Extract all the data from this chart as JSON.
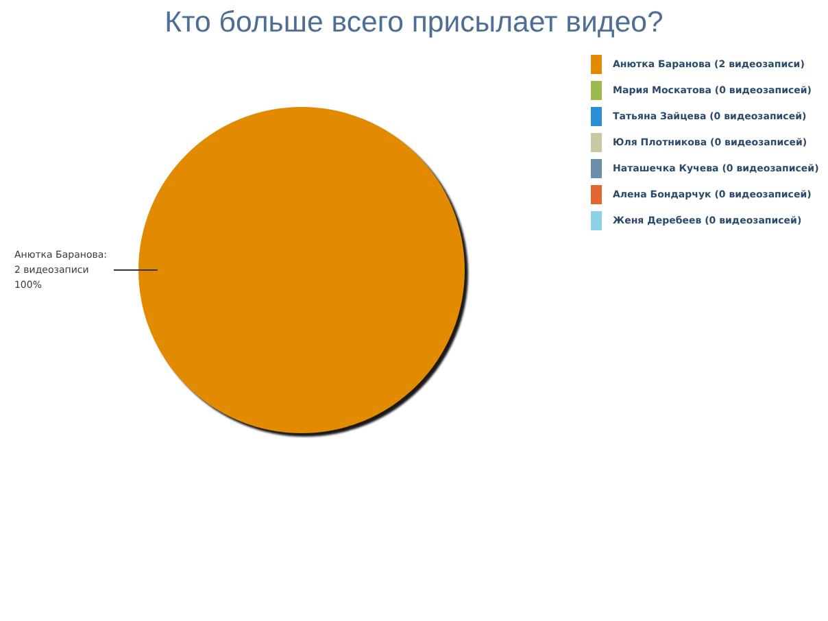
{
  "chart_data": {
    "type": "pie",
    "title": "Кто больше всего присылает видео?",
    "categories": [
      "Анютка Баранова (2 видеозаписи)",
      "Мария Москатова (0 видеозаписей)",
      "Татьяна Зайцева (0 видеозаписей)",
      "Юля Плотникова (0 видеозаписей)",
      "Наташечка Кучева (0 видеозаписей)",
      "Алена Бондарчук (0 видеозаписей)",
      "Женя Деребеев (0 видеозаписей)"
    ],
    "values": [
      2,
      0,
      0,
      0,
      0,
      0,
      0
    ],
    "colors": [
      "#e38b00",
      "#9bbb4f",
      "#2a8fd5",
      "#c9c8a0",
      "#6a8fad",
      "#e3652f",
      "#8ed1e6"
    ],
    "value_labels": [
      "Анютка Баранова:\n2 видеозаписи\n100%",
      null,
      null,
      null,
      null,
      null,
      null
    ],
    "legend": "top right"
  }
}
